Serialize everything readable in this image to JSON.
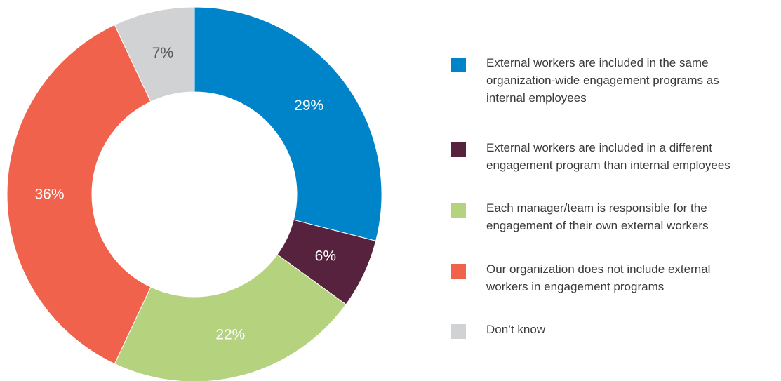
{
  "chart_data": {
    "type": "pie",
    "variant": "donut",
    "categories": [
      "External workers are included in the same organization-wide engagement programs as internal employees",
      "External workers are included in a different engagement program than internal employees",
      "Each manager/team is responsible for the engagement of their own external workers",
      "Our organization does not include external workers in engagement programs",
      "Don’t know"
    ],
    "values": [
      29,
      6,
      22,
      36,
      7
    ],
    "data_labels": [
      "29%",
      "6%",
      "22%",
      "36%",
      "7%"
    ],
    "colors": [
      "#0084c9",
      "#56223d",
      "#b5d37e",
      "#f0624b",
      "#d1d2d4"
    ],
    "label_colors": [
      "#ffffff",
      "#ffffff",
      "#ffffff",
      "#ffffff",
      "#555555"
    ],
    "legend_position": "right",
    "legend": [
      {
        "lines": [
          "External workers are included in the same",
          "organization-wide engagement programs as",
          "internal employees"
        ]
      },
      {
        "lines": [
          "External workers are included in a different",
          "engagement program than internal employees"
        ]
      },
      {
        "lines": [
          "Each manager/team is responsible for the",
          "engagement of their own external workers"
        ]
      },
      {
        "lines": [
          "Our organization does not include external",
          "workers in engagement programs"
        ]
      },
      {
        "lines": [
          "Don’t know"
        ]
      }
    ]
  }
}
